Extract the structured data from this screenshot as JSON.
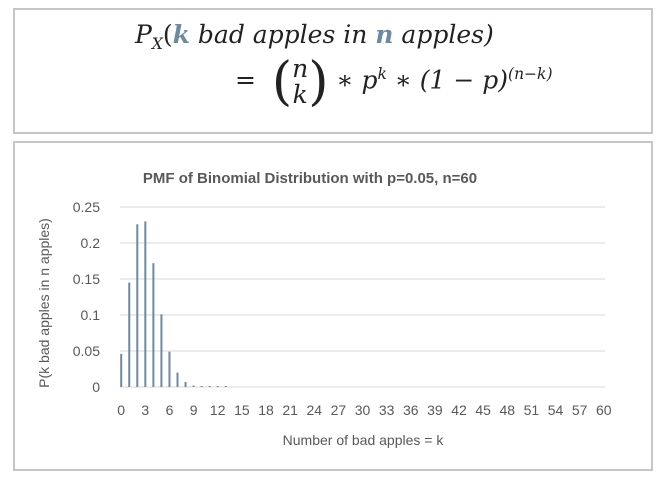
{
  "formula": {
    "lhs_p": "P",
    "lhs_sub": "X",
    "lhs_open": "(",
    "lhs_k": "k",
    "lhs_mid": " bad apples in ",
    "lhs_n": "n",
    "lhs_end": " apples)",
    "eq": "=",
    "binom_top": "n",
    "binom_bottom": "k",
    "term1": "∗ p",
    "term1_sup": "k",
    "term2": "∗ (1 − p)",
    "term2_sup": "(n−k)"
  },
  "chart_data": {
    "type": "bar",
    "title": "PMF of Binomial Distribution  with p=0.05, n=60",
    "xlabel": "Number of bad apples = k",
    "ylabel": "P(k bad apples in n apples)",
    "ylim": [
      0,
      0.25
    ],
    "yticks": [
      0,
      0.05,
      0.1,
      0.15,
      0.2,
      0.25
    ],
    "ytick_labels": [
      "0",
      "0.05",
      "0.1",
      "0.15",
      "0.2",
      "0.25"
    ],
    "xticks": [
      0,
      3,
      6,
      9,
      12,
      15,
      18,
      21,
      24,
      27,
      30,
      33,
      36,
      39,
      42,
      45,
      48,
      51,
      54,
      57,
      60
    ],
    "grid": true,
    "bar_color": "#6e8aa0",
    "k": [
      0,
      1,
      2,
      3,
      4,
      5,
      6,
      7,
      8,
      9,
      10,
      11,
      12,
      13,
      14,
      15,
      16,
      17,
      18,
      19,
      20,
      21,
      22,
      23,
      24,
      25,
      26,
      27,
      28,
      29,
      30,
      31,
      32,
      33,
      34,
      35,
      36,
      37,
      38,
      39,
      40,
      41,
      42,
      43,
      44,
      45,
      46,
      47,
      48,
      49,
      50,
      51,
      52,
      53,
      54,
      55,
      56,
      57,
      58,
      59,
      60
    ],
    "values": [
      0.046,
      0.145,
      0.226,
      0.23,
      0.172,
      0.101,
      0.049,
      0.02,
      0.007,
      0.002,
      0.0006,
      0.0001,
      3e-05,
      1e-05,
      0,
      0,
      0,
      0,
      0,
      0,
      0,
      0,
      0,
      0,
      0,
      0,
      0,
      0,
      0,
      0,
      0,
      0,
      0,
      0,
      0,
      0,
      0,
      0,
      0,
      0,
      0,
      0,
      0,
      0,
      0,
      0,
      0,
      0,
      0,
      0,
      0,
      0,
      0,
      0,
      0,
      0,
      0,
      0,
      0,
      0,
      0
    ]
  }
}
